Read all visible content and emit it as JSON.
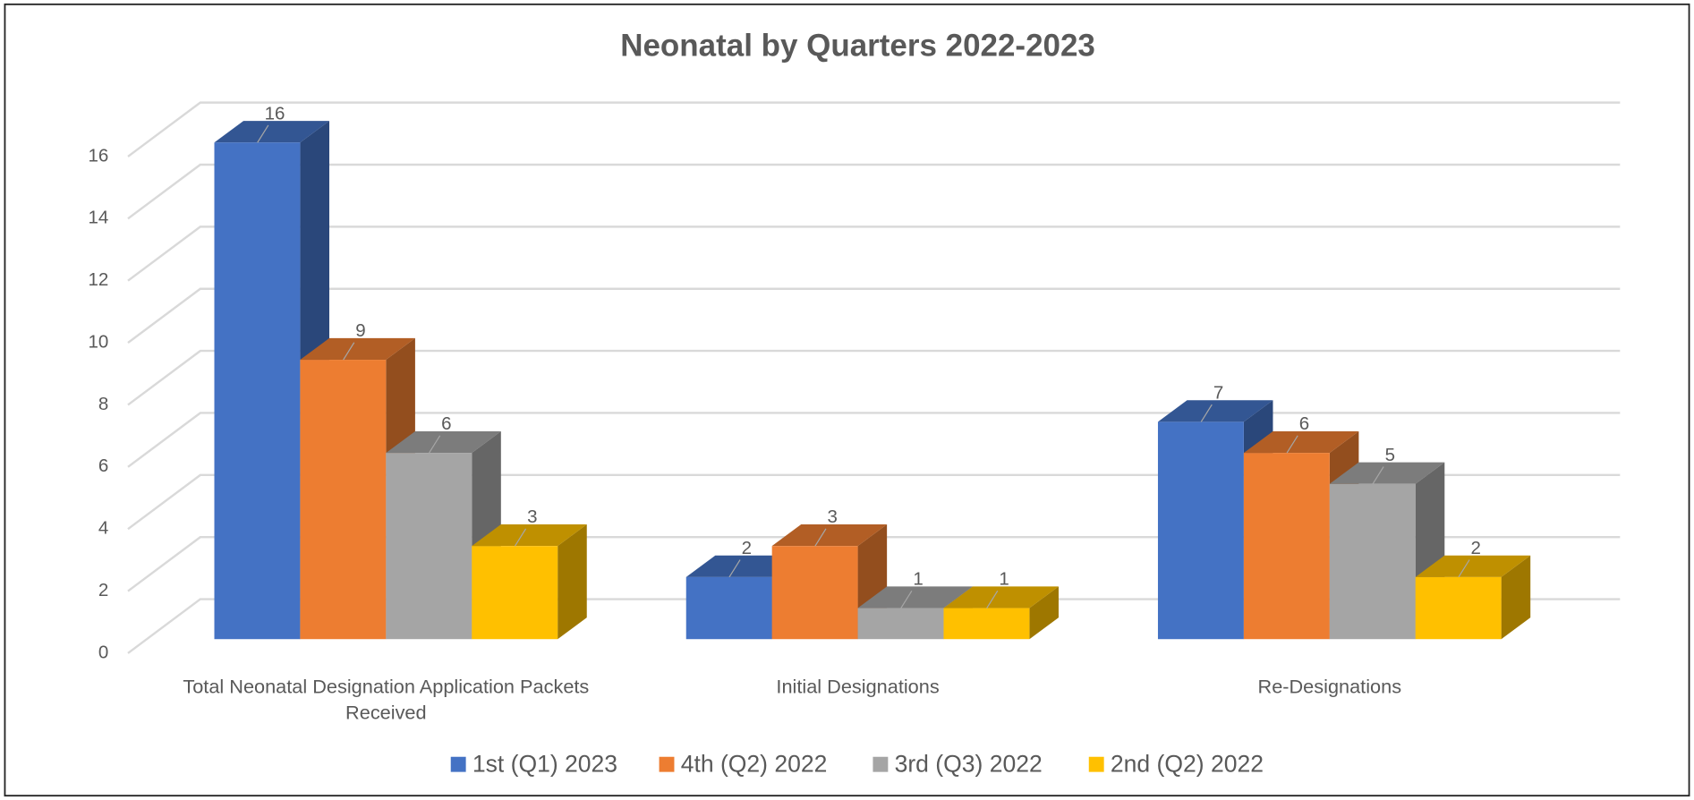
{
  "chart_data": {
    "type": "bar3d",
    "title": "Neonatal by Quarters 2022-2023",
    "categories": [
      "Total Neonatal Designation Application Packets Received",
      "Initial Designations",
      "Re-Designations"
    ],
    "series": [
      {
        "name": "1st (Q1) 2023",
        "color": "#4472c4",
        "values": [
          16,
          2,
          7
        ]
      },
      {
        "name": "4th (Q2) 2022",
        "color": "#ed7d31",
        "values": [
          9,
          3,
          6
        ]
      },
      {
        "name": "3rd (Q3) 2022",
        "color": "#a5a5a5",
        "values": [
          6,
          1,
          5
        ]
      },
      {
        "name": "2nd (Q2) 2022",
        "color": "#ffc000",
        "values": [
          3,
          1,
          2
        ]
      }
    ],
    "ylim": [
      0,
      16
    ],
    "yticks": [
      0,
      2,
      4,
      6,
      8,
      10,
      12,
      14,
      16
    ],
    "grid": true,
    "legend": "bottom"
  }
}
